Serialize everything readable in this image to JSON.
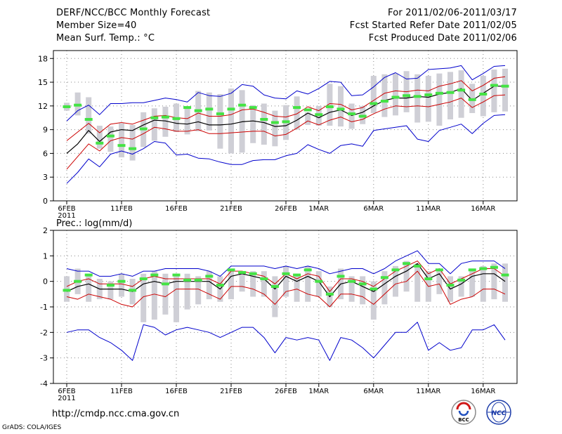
{
  "header": {
    "title": "DERF/NCC/BCC Monthly Forecast",
    "member": "Member Size=40",
    "variable": "Mean Surf. Temp.: °C",
    "period": "For 2011/02/06-2011/03/17",
    "refer": "Fcst Started Refer Date 2011/02/05",
    "produced": "Fcst Produced Date 2011/02/06"
  },
  "footer": {
    "url": "http://cmdp.ncc.cma.gov.cn",
    "credit": "GrADS: COLA/IGES"
  },
  "logos": {
    "bcc_text": "BCC",
    "ncc_text": "NCC"
  },
  "colors": {
    "envelope": "#0000cc",
    "spread": "#cc0000",
    "mean": "#000000",
    "box": "#cfcfd6",
    "obs": "#44e344",
    "grid": "#888888"
  },
  "chart_data": [
    {
      "id": "temperature",
      "type": "line",
      "title": "Mean Surf. Temp.: °C",
      "xlabel": "",
      "ylabel": "",
      "ylim": [
        0,
        19
      ],
      "yticks": [
        0,
        3,
        6,
        9,
        12,
        15,
        18
      ],
      "xlim": [
        0,
        39
      ],
      "xticks": [
        {
          "day": 0,
          "label": "6FEB",
          "sub": "2011"
        },
        {
          "day": 5,
          "label": "11FEB"
        },
        {
          "day": 10,
          "label": "16FEB"
        },
        {
          "day": 15,
          "label": "21FEB"
        },
        {
          "day": 20,
          "label": "26FEB"
        },
        {
          "day": 23,
          "label": "1MAR"
        },
        {
          "day": 28,
          "label": "6MAR"
        },
        {
          "day": 33,
          "label": "11MAR"
        },
        {
          "day": 38,
          "label": "16MAR"
        }
      ],
      "grid": true,
      "series": [
        {
          "name": "max",
          "style": "envelope",
          "values": [
            10.1,
            11.4,
            12.1,
            10.9,
            12.3,
            12.3,
            12.4,
            12.4,
            12.7,
            13.0,
            12.8,
            12.5,
            13.7,
            13.3,
            13.2,
            13.6,
            14.7,
            14.5,
            13.4,
            13.0,
            12.9,
            13.9,
            13.5,
            14.2,
            15.1,
            15.0,
            13.3,
            13.4,
            14.4,
            15.6,
            16.2,
            15.4,
            15.5,
            16.6,
            16.7,
            16.8,
            17.1,
            15.3,
            16.1,
            17.0,
            17.1
          ]
        },
        {
          "name": "upper",
          "style": "spread",
          "values": [
            7.6,
            8.7,
            9.8,
            8.6,
            9.7,
            9.9,
            9.7,
            10.2,
            10.7,
            10.8,
            10.5,
            10.4,
            11.1,
            10.7,
            10.7,
            10.9,
            11.5,
            11.6,
            11.2,
            10.7,
            10.6,
            11.0,
            11.9,
            11.4,
            12.3,
            12.2,
            11.5,
            11.8,
            12.7,
            13.6,
            13.9,
            13.8,
            14.0,
            13.9,
            14.5,
            14.8,
            15.2,
            13.9,
            14.6,
            15.5,
            15.7
          ]
        },
        {
          "name": "mean",
          "style": "mean",
          "values": [
            6.0,
            7.2,
            8.9,
            7.5,
            8.7,
            9.0,
            8.9,
            9.6,
            10.2,
            10.1,
            9.8,
            9.7,
            10.0,
            9.6,
            9.6,
            9.7,
            10.0,
            10.1,
            9.9,
            9.4,
            9.5,
            10.2,
            11.1,
            10.5,
            11.2,
            11.5,
            10.8,
            11.2,
            12.0,
            12.7,
            13.0,
            13.0,
            13.2,
            13.1,
            13.5,
            13.7,
            14.2,
            12.7,
            13.6,
            14.5,
            14.5
          ]
        },
        {
          "name": "lower",
          "style": "spread",
          "values": [
            4.0,
            5.6,
            7.2,
            6.3,
            7.6,
            8.0,
            7.8,
            8.5,
            9.3,
            9.1,
            8.8,
            8.8,
            9.0,
            8.5,
            8.5,
            8.6,
            8.7,
            8.8,
            8.8,
            8.2,
            8.4,
            9.2,
            10.1,
            9.6,
            10.2,
            10.6,
            10.0,
            10.3,
            11.0,
            11.6,
            12.0,
            11.9,
            12.0,
            11.9,
            12.2,
            12.5,
            13.0,
            11.8,
            12.5,
            13.3,
            13.4
          ]
        },
        {
          "name": "min",
          "style": "envelope",
          "values": [
            2.2,
            3.6,
            5.3,
            4.3,
            5.9,
            6.3,
            5.9,
            6.6,
            7.5,
            7.3,
            5.8,
            5.9,
            5.4,
            5.3,
            4.9,
            4.6,
            4.6,
            5.1,
            5.2,
            5.2,
            5.7,
            6.0,
            7.1,
            6.5,
            6.0,
            7.0,
            7.2,
            6.9,
            8.9,
            9.1,
            9.3,
            9.5,
            7.8,
            7.5,
            8.9,
            9.3,
            9.7,
            8.5,
            9.8,
            10.8,
            10.9
          ]
        }
      ],
      "boxes": [
        [
          11.4,
          12.4
        ],
        [
          10.8,
          13.7
        ],
        [
          8.5,
          13.1
        ],
        [
          6.6,
          9.5
        ],
        [
          6.2,
          9.4
        ],
        [
          5.5,
          9.8
        ],
        [
          5.1,
          9.6
        ],
        [
          6.8,
          11.2
        ],
        [
          7.6,
          11.7
        ],
        [
          8.1,
          11.9
        ],
        [
          8.7,
          12.3
        ],
        [
          8.4,
          11.8
        ],
        [
          8.8,
          13.9
        ],
        [
          8.9,
          13.7
        ],
        [
          6.6,
          13.5
        ],
        [
          6.0,
          14.2
        ],
        [
          6.1,
          14.0
        ],
        [
          7.3,
          12.1
        ],
        [
          7.1,
          12.3
        ],
        [
          6.9,
          11.4
        ],
        [
          7.7,
          12.1
        ],
        [
          9.0,
          13.2
        ],
        [
          9.6,
          11.2
        ],
        [
          9.5,
          12.0
        ],
        [
          9.5,
          14.8
        ],
        [
          9.4,
          14.5
        ],
        [
          9.1,
          12.3
        ],
        [
          9.7,
          12.0
        ],
        [
          11.1,
          15.8
        ],
        [
          10.6,
          16.0
        ],
        [
          10.8,
          16.1
        ],
        [
          11.2,
          16.4
        ],
        [
          9.9,
          16.0
        ],
        [
          10.0,
          15.8
        ],
        [
          9.5,
          16.1
        ],
        [
          10.3,
          16.3
        ],
        [
          10.5,
          16.5
        ],
        [
          11.1,
          14.8
        ],
        [
          10.7,
          15.8
        ],
        [
          11.2,
          16.6
        ],
        [
          11.3,
          16.7
        ]
      ],
      "observed": [
        11.9,
        12.1,
        10.3,
        7.3,
        8.2,
        7.0,
        6.6,
        9.1,
        10.5,
        10.6,
        10.4,
        11.8,
        11.4,
        11.6,
        11.0,
        11.6,
        12.1,
        11.8,
        10.3,
        9.9,
        10.0,
        11.8,
        11.5,
        10.9,
        11.9,
        11.6,
        11.0,
        10.7,
        12.3,
        12.6,
        13.1,
        13.3,
        13.2,
        13.4,
        13.6,
        13.7,
        14.0,
        12.8,
        13.5,
        14.6,
        14.5
      ]
    },
    {
      "id": "precipitation",
      "type": "line",
      "title": "Prec.: log(mm/d)",
      "xlabel": "",
      "ylabel": "",
      "ylim": [
        -4,
        2
      ],
      "yticks": [
        -4,
        -3,
        -2,
        -1,
        0,
        1,
        2
      ],
      "xlim": [
        0,
        39
      ],
      "xticks": [
        {
          "day": 0,
          "label": "6FEB",
          "sub": "2011"
        },
        {
          "day": 5,
          "label": "11FEB"
        },
        {
          "day": 10,
          "label": "16FEB"
        },
        {
          "day": 15,
          "label": "21FEB"
        },
        {
          "day": 20,
          "label": "26FEB"
        },
        {
          "day": 23,
          "label": "1MAR"
        },
        {
          "day": 28,
          "label": "6MAR"
        },
        {
          "day": 33,
          "label": "11MAR"
        },
        {
          "day": 38,
          "label": "16MAR"
        }
      ],
      "grid": true,
      "series": [
        {
          "name": "max",
          "style": "envelope",
          "values": [
            0.5,
            0.4,
            0.4,
            0.2,
            0.2,
            0.3,
            0.2,
            0.4,
            0.4,
            0.5,
            0.5,
            0.5,
            0.5,
            0.4,
            0.2,
            0.6,
            0.6,
            0.6,
            0.6,
            0.5,
            0.6,
            0.5,
            0.6,
            0.5,
            0.3,
            0.4,
            0.5,
            0.5,
            0.3,
            0.5,
            0.8,
            1.0,
            1.2,
            0.7,
            0.7,
            0.3,
            0.7,
            0.8,
            0.8,
            0.8,
            0.5
          ]
        },
        {
          "name": "upper",
          "style": "spread",
          "values": [
            -0.2,
            0.0,
            0.1,
            -0.1,
            -0.1,
            -0.1,
            -0.2,
            0.1,
            0.2,
            0.1,
            0.1,
            0.1,
            0.1,
            0.1,
            -0.1,
            0.4,
            0.4,
            0.3,
            0.2,
            -0.1,
            0.3,
            0.1,
            0.3,
            0.2,
            -0.4,
            0.1,
            0.1,
            0.0,
            -0.2,
            0.1,
            0.4,
            0.6,
            0.8,
            0.3,
            0.5,
            -0.1,
            0.1,
            0.3,
            0.5,
            0.5,
            0.2
          ]
        },
        {
          "name": "mean",
          "style": "mean",
          "values": [
            -0.4,
            -0.2,
            -0.1,
            -0.3,
            -0.3,
            -0.3,
            -0.4,
            -0.1,
            0.0,
            -0.1,
            0.0,
            0.0,
            0.0,
            0.0,
            -0.3,
            0.2,
            0.3,
            0.2,
            0.1,
            -0.3,
            0.2,
            0.0,
            0.2,
            0.0,
            -0.6,
            -0.1,
            0.0,
            -0.2,
            -0.4,
            -0.1,
            0.2,
            0.4,
            0.7,
            0.1,
            0.3,
            -0.3,
            -0.1,
            0.2,
            0.3,
            0.3,
            0.0
          ]
        },
        {
          "name": "lower",
          "style": "spread",
          "values": [
            -0.6,
            -0.7,
            -0.5,
            -0.6,
            -0.7,
            -0.9,
            -1.0,
            -0.6,
            -0.5,
            -0.6,
            -0.3,
            -0.3,
            -0.3,
            -0.5,
            -0.7,
            -0.2,
            -0.2,
            -0.3,
            -0.5,
            -0.9,
            -0.4,
            -0.3,
            -0.5,
            -0.6,
            -1.0,
            -0.5,
            -0.5,
            -0.6,
            -0.9,
            -0.5,
            -0.1,
            0.0,
            0.4,
            -0.2,
            -0.1,
            -0.9,
            -0.7,
            -0.6,
            -0.3,
            -0.3,
            -0.5
          ]
        },
        {
          "name": "min",
          "style": "envelope",
          "values": [
            -2.0,
            -1.9,
            -1.9,
            -2.2,
            -2.4,
            -2.7,
            -3.1,
            -1.7,
            -1.8,
            -2.1,
            -1.9,
            -1.8,
            -1.9,
            -2.0,
            -2.2,
            -2.0,
            -1.8,
            -1.8,
            -2.2,
            -2.8,
            -2.2,
            -2.3,
            -2.2,
            -2.3,
            -3.1,
            -2.2,
            -2.3,
            -2.6,
            -3.0,
            -2.5,
            -2.0,
            -2.0,
            -1.6,
            -2.7,
            -2.4,
            -2.7,
            -2.6,
            -1.9,
            -1.9,
            -1.7,
            -2.3
          ]
        }
      ],
      "boxes": [
        [
          -0.8,
          0.2
        ],
        [
          -0.5,
          0.5
        ],
        [
          -0.8,
          0.3
        ],
        [
          -0.7,
          0.1
        ],
        [
          -0.7,
          0.0
        ],
        [
          -0.6,
          0.3
        ],
        [
          -0.9,
          0.1
        ],
        [
          -1.6,
          0.3
        ],
        [
          -1.5,
          0.4
        ],
        [
          -1.3,
          0.3
        ],
        [
          -1.6,
          0.2
        ],
        [
          -1.1,
          0.3
        ],
        [
          -0.9,
          0.2
        ],
        [
          -0.7,
          0.4
        ],
        [
          -0.8,
          0.2
        ],
        [
          -0.7,
          0.5
        ],
        [
          -0.4,
          0.4
        ],
        [
          -0.6,
          0.4
        ],
        [
          -0.6,
          0.4
        ],
        [
          -1.4,
          0.2
        ],
        [
          -0.6,
          0.6
        ],
        [
          -0.8,
          0.3
        ],
        [
          -0.8,
          0.6
        ],
        [
          -0.6,
          0.4
        ],
        [
          -1.0,
          -0.2
        ],
        [
          -0.7,
          0.5
        ],
        [
          -0.8,
          0.2
        ],
        [
          -0.9,
          0.2
        ],
        [
          -1.5,
          0.0
        ],
        [
          -0.9,
          0.4
        ],
        [
          -0.6,
          0.6
        ],
        [
          -0.4,
          0.8
        ],
        [
          -0.8,
          0.7
        ],
        [
          -0.8,
          0.4
        ],
        [
          -0.5,
          0.5
        ],
        [
          -0.8,
          0.2
        ],
        [
          -0.6,
          0.2
        ],
        [
          -0.6,
          0.5
        ],
        [
          -0.8,
          0.6
        ],
        [
          -0.7,
          0.7
        ],
        [
          -0.8,
          0.7
        ]
      ],
      "observed": [
        -0.35,
        0.0,
        0.25,
        null,
        -0.15,
        0.0,
        -0.35,
        0.1,
        0.25,
        -0.1,
        0.25,
        0.05,
        0.05,
        0.2,
        -0.15,
        0.45,
        0.35,
        0.3,
        0.1,
        -0.2,
        0.3,
        0.25,
        0.45,
        0.0,
        -0.5,
        0.2,
        0.0,
        -0.1,
        -0.3,
        0.15,
        0.45,
        0.7,
        0.6,
        0.1,
        0.45,
        -0.15,
        0.05,
        0.45,
        0.5,
        0.55,
        0.25
      ]
    }
  ]
}
